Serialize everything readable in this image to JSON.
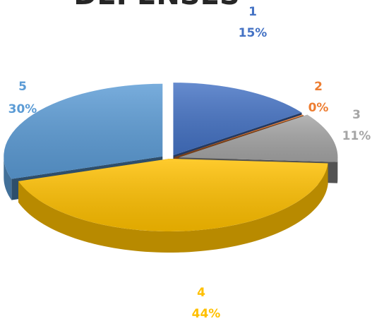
{
  "chart_data": {
    "type": "pie",
    "title": "DEPENSES",
    "categories": [
      "1",
      "2",
      "3",
      "4",
      "5"
    ],
    "values": [
      15,
      0,
      11,
      44,
      30
    ],
    "value_labels": [
      "15%",
      "0%",
      "11%",
      "44%",
      "30%"
    ],
    "colors": [
      "#4472C4",
      "#ED7D31",
      "#A5A5A5",
      "#FFC000",
      "#5B9BD5"
    ],
    "legend": "none",
    "style": "3d-exploded"
  }
}
